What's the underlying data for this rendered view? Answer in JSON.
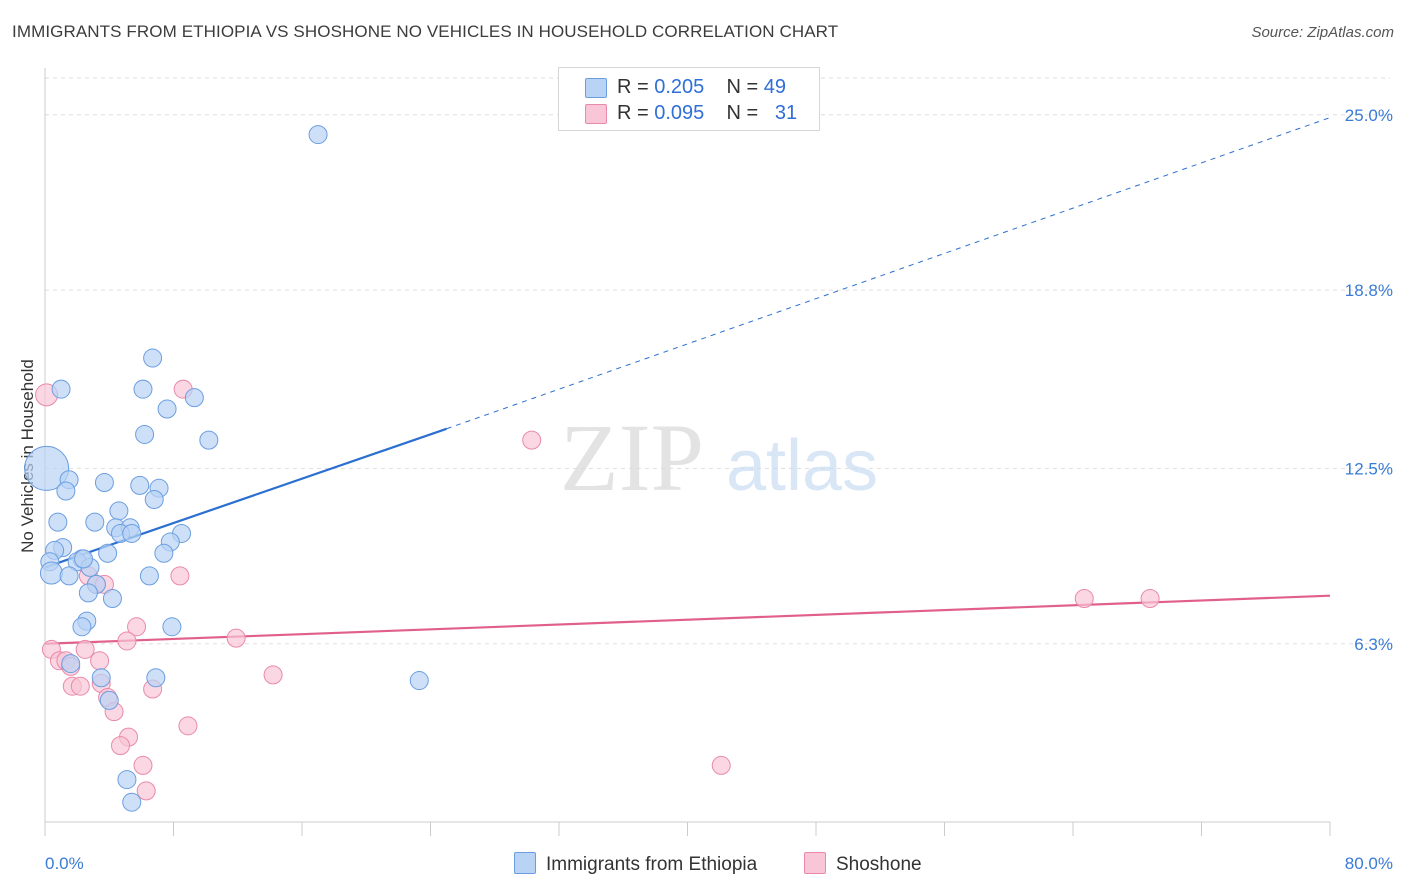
{
  "title": "IMMIGRANTS FROM ETHIOPIA VS SHOSHONE NO VEHICLES IN HOUSEHOLD CORRELATION CHART",
  "source": "Source: ZipAtlas.com",
  "watermark": {
    "zip": "ZIP",
    "atlas": "atlas"
  },
  "legend_top": {
    "rows": [
      {
        "r_label": "R = ",
        "r_value": "0.205",
        "n_label": "N = ",
        "n_value": "49"
      },
      {
        "r_label": "R = ",
        "r_value": "0.095",
        "n_label": "N = ",
        "n_value": "31"
      }
    ]
  },
  "colors": {
    "blue_fill": "#b9d3f5",
    "blue_stroke": "#6b9ee0",
    "blue_line": "#2b6fd1",
    "pink_fill": "#f8c6d6",
    "pink_stroke": "#e98aa9",
    "pink_line": "#e0608a",
    "grid": "#dddddd",
    "tick_label": "#3a7bd5"
  },
  "chart_data": {
    "type": "scatter",
    "title": "IMMIGRANTS FROM ETHIOPIA VS SHOSHONE NO VEHICLES IN HOUSEHOLD CORRELATION CHART",
    "xlabel": "",
    "ylabel": "No Vehicles in Household",
    "xlim": [
      0,
      80
    ],
    "ylim": [
      0,
      26.3
    ],
    "x_tick_labels": [
      "0.0%",
      "80.0%"
    ],
    "y_ticks": [
      6.3,
      12.5,
      18.8,
      25.0
    ],
    "y_tick_labels": [
      "6.3%",
      "12.5%",
      "18.8%",
      "25.0%"
    ],
    "grid": true,
    "legend_placement": "top-center and bottom",
    "series": [
      {
        "name": "Immigrants from Ethiopia",
        "color": "#6b9ee0",
        "trend": {
          "x": [
            0,
            25
          ],
          "y": [
            9.0,
            13.9
          ],
          "dashed_to": [
            80,
            24.9
          ]
        },
        "points": [
          [
            0.1,
            12.5,
            22
          ],
          [
            17,
            24.3,
            9
          ],
          [
            6.7,
            16.4,
            9
          ],
          [
            1,
            15.3,
            9
          ],
          [
            6.1,
            15.3,
            9
          ],
          [
            9.3,
            15.0,
            9
          ],
          [
            7.6,
            14.6,
            9
          ],
          [
            6.2,
            13.7,
            9
          ],
          [
            10.2,
            13.5,
            9
          ],
          [
            1.5,
            12.1,
            9
          ],
          [
            3.7,
            12.0,
            9
          ],
          [
            5.9,
            11.9,
            9
          ],
          [
            7.1,
            11.8,
            9
          ],
          [
            1.3,
            11.7,
            9
          ],
          [
            6.8,
            11.4,
            9
          ],
          [
            4.6,
            11.0,
            9
          ],
          [
            0.8,
            10.6,
            9
          ],
          [
            3.1,
            10.6,
            9
          ],
          [
            4.4,
            10.4,
            9
          ],
          [
            5.3,
            10.4,
            9
          ],
          [
            4.7,
            10.2,
            9
          ],
          [
            5.4,
            10.2,
            9
          ],
          [
            8.5,
            10.2,
            9
          ],
          [
            7.8,
            9.9,
            9
          ],
          [
            1.1,
            9.7,
            9
          ],
          [
            0.6,
            9.6,
            9
          ],
          [
            3.9,
            9.5,
            9
          ],
          [
            7.4,
            9.5,
            9
          ],
          [
            2.3,
            9.3,
            9
          ],
          [
            0.3,
            9.2,
            9
          ],
          [
            2.0,
            9.2,
            9
          ],
          [
            2.8,
            9.0,
            9
          ],
          [
            0.4,
            8.8,
            11
          ],
          [
            1.5,
            8.7,
            9
          ],
          [
            6.5,
            8.7,
            9
          ],
          [
            3.2,
            8.4,
            9
          ],
          [
            2.7,
            8.1,
            9
          ],
          [
            4.2,
            7.9,
            9
          ],
          [
            2.6,
            7.1,
            9
          ],
          [
            2.3,
            6.9,
            9
          ],
          [
            7.9,
            6.9,
            9
          ],
          [
            1.6,
            5.6,
            9
          ],
          [
            3.5,
            5.1,
            9
          ],
          [
            6.9,
            5.1,
            9
          ],
          [
            23.3,
            5.0,
            9
          ],
          [
            4.0,
            4.3,
            9
          ],
          [
            5.1,
            1.5,
            9
          ],
          [
            5.4,
            0.7,
            9
          ],
          [
            2.4,
            9.3,
            9
          ]
        ]
      },
      {
        "name": "Shoshone",
        "color": "#e98aa9",
        "trend": {
          "x": [
            0,
            80
          ],
          "y": [
            6.3,
            8.0
          ]
        },
        "points": [
          [
            0.1,
            15.1,
            11
          ],
          [
            8.6,
            15.3,
            9
          ],
          [
            30.3,
            13.5,
            9
          ],
          [
            8.4,
            8.7,
            9
          ],
          [
            2.7,
            8.7,
            9
          ],
          [
            3.2,
            8.4,
            9
          ],
          [
            64.7,
            7.9,
            9
          ],
          [
            68.8,
            7.9,
            9
          ],
          [
            5.7,
            6.9,
            9
          ],
          [
            11.9,
            6.5,
            9
          ],
          [
            5.1,
            6.4,
            9
          ],
          [
            0.4,
            6.1,
            9
          ],
          [
            2.5,
            6.1,
            9
          ],
          [
            0.9,
            5.7,
            9
          ],
          [
            1.3,
            5.7,
            9
          ],
          [
            3.4,
            5.7,
            9
          ],
          [
            1.6,
            5.5,
            9
          ],
          [
            14.2,
            5.2,
            9
          ],
          [
            3.5,
            4.9,
            9
          ],
          [
            1.7,
            4.8,
            9
          ],
          [
            2.2,
            4.8,
            9
          ],
          [
            6.7,
            4.7,
            9
          ],
          [
            3.9,
            4.4,
            9
          ],
          [
            4.3,
            3.9,
            9
          ],
          [
            8.9,
            3.4,
            9
          ],
          [
            5.2,
            3.0,
            9
          ],
          [
            4.7,
            2.7,
            9
          ],
          [
            6.1,
            2.0,
            9
          ],
          [
            42.1,
            2.0,
            9
          ],
          [
            6.3,
            1.1,
            9
          ],
          [
            3.7,
            8.4,
            9
          ]
        ]
      }
    ]
  }
}
